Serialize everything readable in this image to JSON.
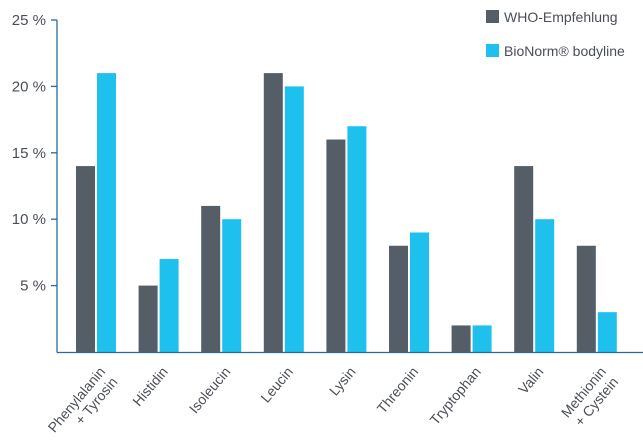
{
  "chart_data": {
    "type": "bar",
    "title": "",
    "xlabel": "",
    "ylabel": "",
    "categories": [
      [
        "Phenylalanin",
        "+ Tyrosin"
      ],
      [
        "Histidin"
      ],
      [
        "Isoleucin"
      ],
      [
        "Leucin"
      ],
      [
        "Lysin"
      ],
      [
        "Threonin"
      ],
      [
        "Tryptophan"
      ],
      [
        "Valin"
      ],
      [
        "Methionin",
        "+ Cystein"
      ]
    ],
    "series": [
      {
        "name": "WHO-Empfehlung",
        "color": "#555e67",
        "values": [
          14,
          5,
          11,
          21,
          16,
          8,
          2,
          14,
          8
        ]
      },
      {
        "name": "BioNorm® bodyline",
        "color": "#1ec0ee",
        "values": [
          21,
          7,
          10,
          20,
          17,
          9,
          2,
          10,
          3
        ]
      }
    ],
    "ylim": [
      0,
      25
    ],
    "yticks": [
      5,
      10,
      15,
      20,
      25
    ],
    "ytick_labels": [
      "5 %",
      "10 %",
      "15 %",
      "20 %",
      "25 %"
    ],
    "grid": false,
    "legend_position": "top-right",
    "axis_color": "#2b6a9a"
  }
}
